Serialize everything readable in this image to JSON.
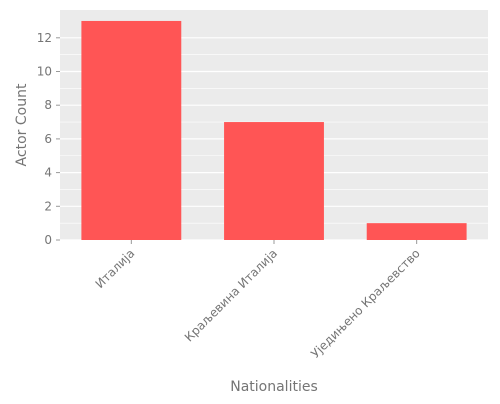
{
  "chart_data": {
    "type": "bar",
    "categories": [
      "Италија",
      "Краљевина Италија",
      "Уједињено Краљевство"
    ],
    "values": [
      13,
      7,
      1
    ],
    "xlabel": "Nationalities",
    "ylabel": "Actor Count",
    "ylim": [
      0,
      13.65
    ],
    "yticks": [
      0,
      2,
      4,
      6,
      8,
      10,
      12
    ],
    "grid": true,
    "legend": "none",
    "colors": {
      "bar": "#ff5555",
      "plot_background": "#ebebeb",
      "grid": "#ffffff",
      "text": "#757575"
    }
  }
}
